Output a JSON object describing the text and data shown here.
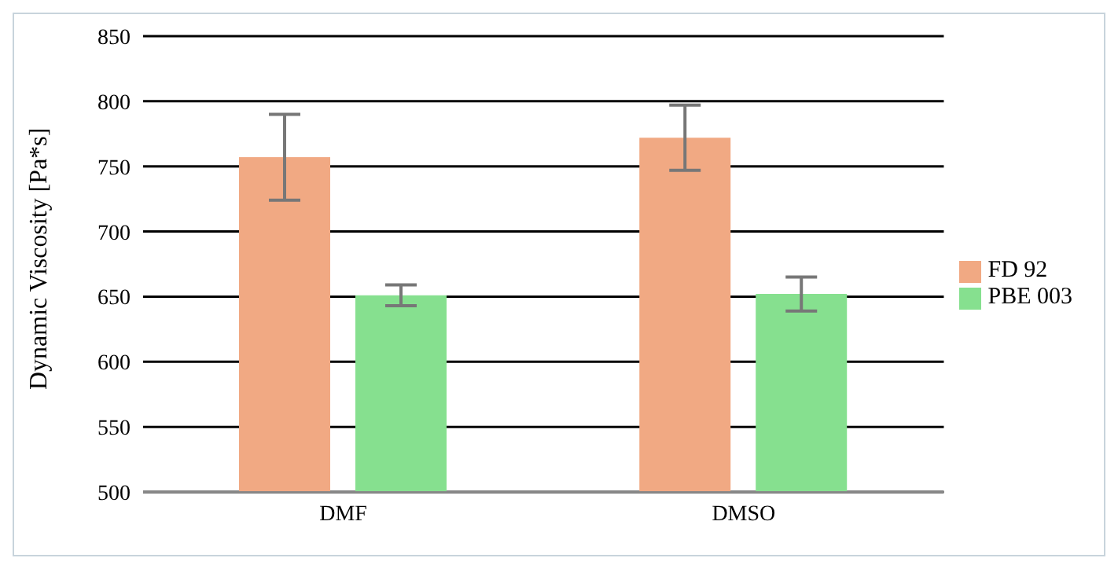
{
  "chart_data": {
    "type": "bar",
    "ylabel": "Dynamic Viscosity [Pa*s]",
    "categories": [
      "DMF",
      "DMSO"
    ],
    "series": [
      {
        "name": "FD 92",
        "color": "#f1a983",
        "values": [
          757,
          772
        ],
        "errors": [
          33,
          25
        ]
      },
      {
        "name": "PBE 003",
        "color": "#86e08f",
        "values": [
          651,
          652
        ],
        "errors": [
          8,
          13
        ]
      }
    ],
    "ylim": [
      500,
      850
    ],
    "yticks": [
      500,
      550,
      600,
      650,
      700,
      750,
      800,
      850
    ],
    "grid": "y",
    "legend": "right"
  }
}
